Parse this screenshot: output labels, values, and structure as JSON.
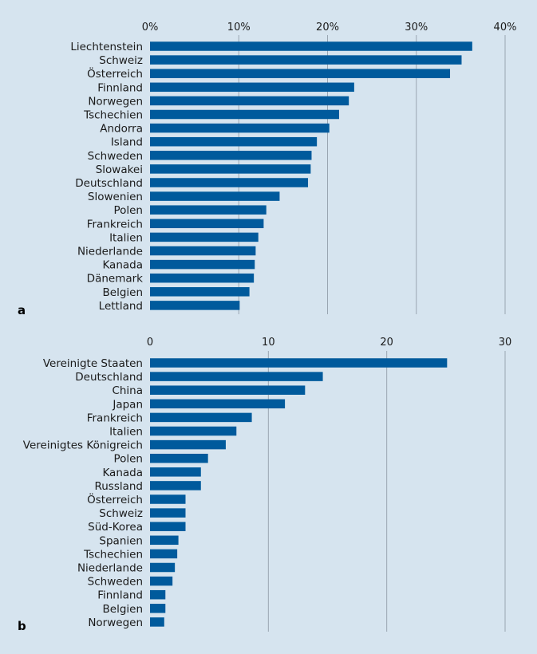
{
  "chart_data": [
    {
      "type": "bar",
      "orientation": "horizontal",
      "panel_label": "a",
      "categories": [
        "Liechtenstein",
        "Schweiz",
        "Österreich",
        "Finnland",
        "Norwegen",
        "Tschechien",
        "Andorra",
        "Island",
        "Schweden",
        "Slowakei",
        "Deutschland",
        "Slowenien",
        "Polen",
        "Frankreich",
        "Italien",
        "Niederlande",
        "Kanada",
        "Dänemark",
        "Belgien",
        "Lettland"
      ],
      "values": [
        36.3,
        35.1,
        33.8,
        23.0,
        22.4,
        21.3,
        20.2,
        18.8,
        18.2,
        18.1,
        17.8,
        14.6,
        13.1,
        12.8,
        12.2,
        11.9,
        11.8,
        11.7,
        11.2,
        10.1
      ],
      "xlim": [
        0,
        40
      ],
      "ticks": [
        0,
        10,
        20,
        30,
        40
      ],
      "tick_labels": [
        "0%",
        "10%",
        "20%",
        "30%",
        "40%"
      ],
      "axis_position": "top",
      "grid": true,
      "bar_color": "#005a9c"
    },
    {
      "type": "bar",
      "orientation": "horizontal",
      "panel_label": "b",
      "categories": [
        "Vereinigte Staaten",
        "Deutschland",
        "China",
        "Japan",
        "Frankreich",
        "Italien",
        "Vereinigtes Königreich",
        "Polen",
        "Kanada",
        "Russland",
        "Österreich",
        "Schweiz",
        "Süd-Korea",
        "Spanien",
        "Tschechien",
        "Niederlande",
        "Schweden",
        "Finnland",
        "Belgien",
        "Norwegen"
      ],
      "values": [
        25.1,
        14.6,
        13.1,
        11.4,
        8.6,
        7.3,
        6.4,
        4.9,
        4.3,
        4.3,
        3.0,
        3.0,
        3.0,
        2.4,
        2.3,
        2.1,
        1.9,
        1.3,
        1.3,
        1.2
      ],
      "xlim": [
        0,
        30
      ],
      "ticks": [
        0,
        10,
        20,
        30
      ],
      "tick_labels": [
        "0",
        "10",
        "20",
        "30"
      ],
      "axis_position": "top",
      "grid": true,
      "bar_color": "#005a9c"
    }
  ]
}
